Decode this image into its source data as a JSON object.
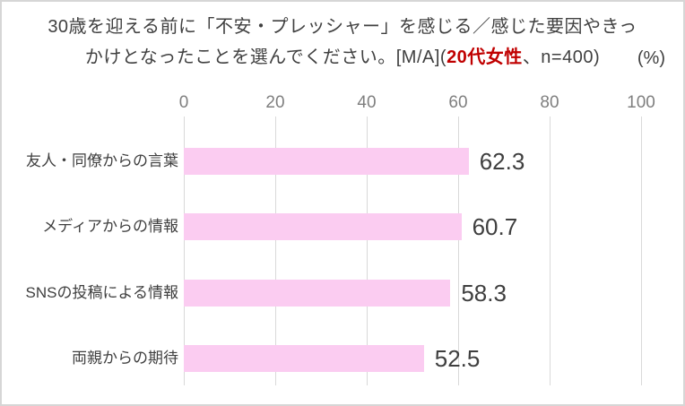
{
  "title": {
    "line1": "30歳を迎える前に「不安・プレッシャー」を感じる／感じた要因やきっ",
    "line2_prefix": "かけとなったことを選んでください。[M/A](",
    "line2_highlight": "20代女性",
    "line2_suffix": "、n=400)"
  },
  "chart_data": {
    "type": "bar",
    "orientation": "horizontal",
    "title": "30歳を迎える前に「不安・プレッシャー」を感じる／感じた要因やきっかけとなったことを選んでください。[M/A](20代女性、n=400)",
    "unit_label": "(%)",
    "categories": [
      "友人・同僚からの言葉",
      "メディアからの情報",
      "SNSの投稿による情報",
      "両親からの期待"
    ],
    "values": [
      62.3,
      60.7,
      58.3,
      52.5
    ],
    "value_labels": [
      "62.3",
      "60.7",
      "58.3",
      "52.5"
    ],
    "x_ticks": [
      0,
      20,
      40,
      60,
      80,
      100
    ],
    "xlim": [
      0,
      100
    ],
    "grid": true,
    "legend": "none",
    "colors": {
      "bar": "#fbccf1",
      "gridline": "#d9d9d9",
      "tick_text": "#7f7f7f",
      "label_text": "#3f3f3f",
      "value_text": "#3f3f3f",
      "highlight_red": "#c00000",
      "frame_border": "#d6d6d6"
    }
  }
}
